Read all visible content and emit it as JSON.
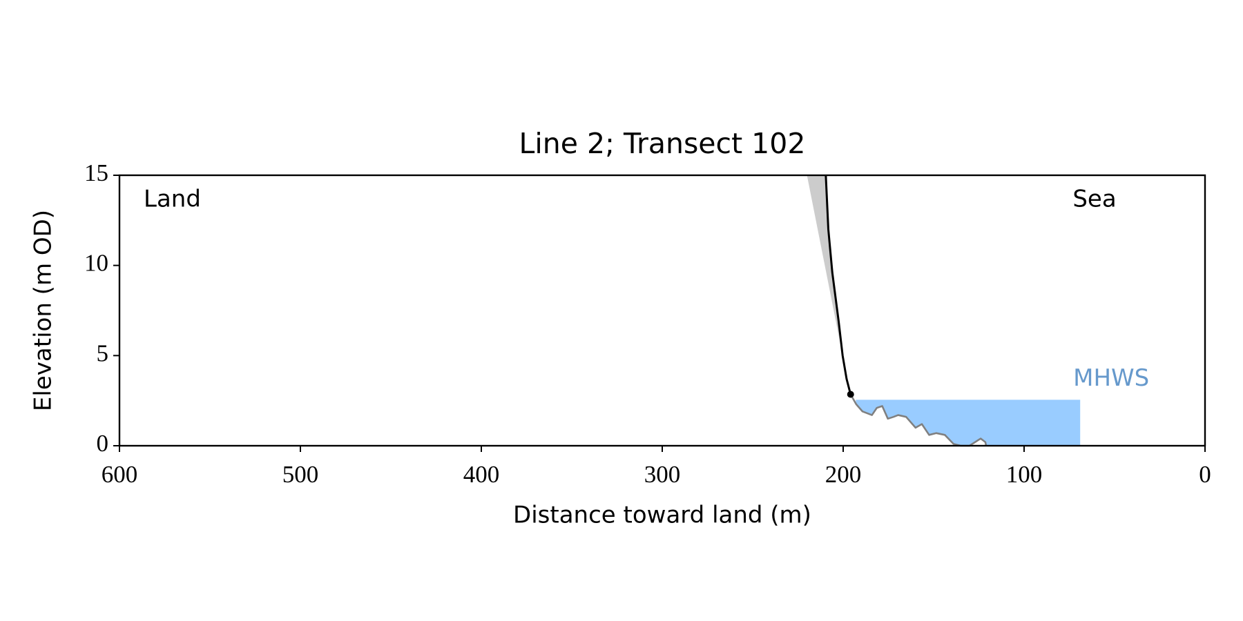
{
  "chart_data": {
    "type": "profile",
    "title": "Line 2; Transect 102",
    "xlabel": "Distance toward land (m)",
    "ylabel": "Elevation (m OD)",
    "annotations": {
      "left": "Land",
      "right": "Sea"
    },
    "xlim": [
      600,
      0
    ],
    "ylim": [
      0,
      15
    ],
    "xticks": [
      600,
      500,
      400,
      300,
      200,
      100,
      0
    ],
    "yticks": [
      0,
      5,
      10,
      15
    ],
    "eroded_area": {
      "color": "#cccccc",
      "x": [
        220,
        209.6,
        208.2,
        206,
        202.5,
        200.3
      ],
      "values": [
        15,
        15,
        12.0,
        9.6,
        6.9,
        5.0
      ]
    },
    "cliff": {
      "color": "#000000",
      "x": [
        209.6,
        208.2,
        206,
        202.5,
        200.3,
        198.1,
        195.9
      ],
      "values": [
        15,
        12.0,
        9.6,
        6.9,
        5.0,
        3.7,
        2.85
      ]
    },
    "cliff_toe": {
      "color": "#000000",
      "x": 195.9,
      "y": 2.85
    },
    "profile": {
      "color": "#808080",
      "x": [
        195.9,
        192.8,
        189.3,
        184.1,
        181.4,
        178.4,
        175.3,
        172.2,
        169.6,
        165.2,
        160,
        156.5,
        152.5,
        148.6,
        143.8,
        139,
        135,
        130.2,
        124,
        121.4,
        121
      ],
      "values": [
        2.85,
        2.3,
        1.9,
        1.7,
        2.1,
        2.2,
        1.5,
        1.6,
        1.7,
        1.6,
        1.0,
        1.2,
        0.6,
        0.7,
        0.6,
        0.1,
        0,
        0,
        0.4,
        0.2,
        0
      ]
    },
    "mhws": {
      "label": "MHWS",
      "level": 2.55,
      "x": [
        193,
        69
      ],
      "color": "#99ccff",
      "label_color": "#6699cc"
    }
  }
}
